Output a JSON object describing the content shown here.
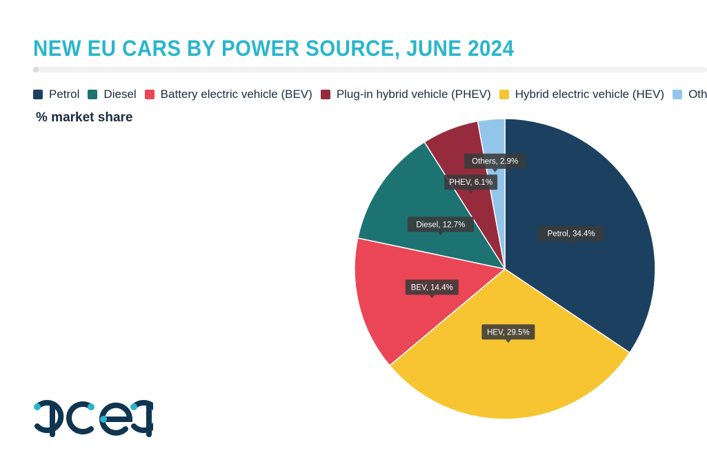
{
  "chart_data": {
    "type": "pie",
    "title": "NEW EU CARS BY POWER SOURCE, JUNE 2024",
    "subtitle": "% market share",
    "unit": "%",
    "legend_position": "top",
    "slices": [
      {
        "name": "Petrol",
        "legend_label": "Petrol",
        "label": "Petrol, 34.4%",
        "value": 34.4,
        "color": "#1c4160"
      },
      {
        "name": "HEV",
        "legend_label": "Hybrid electric vehicle (HEV)",
        "label": "HEV, 29.5%",
        "value": 29.5,
        "color": "#f6c531"
      },
      {
        "name": "BEV",
        "legend_label": "Battery electric vehicle (BEV)",
        "label": "BEV, 14.4%",
        "value": 14.4,
        "color": "#ea4656"
      },
      {
        "name": "Diesel",
        "legend_label": "Diesel",
        "label": "Diesel, 12.7%",
        "value": 12.7,
        "color": "#1d7372"
      },
      {
        "name": "PHEV",
        "legend_label": "Plug-in hybrid vehicle (PHEV)",
        "label": "PHEV, 6.1%",
        "value": 6.1,
        "color": "#962b3e"
      },
      {
        "name": "Others",
        "legend_label": "Others",
        "label": "Others, 2.9%",
        "value": 2.9,
        "color": "#93c5ea"
      }
    ],
    "legend_order": [
      "Petrol",
      "Diesel",
      "BEV",
      "PHEV",
      "HEV",
      "Others"
    ]
  },
  "logo": {
    "text": "acea",
    "color": "#0f3550",
    "accent": "#29b6cc"
  },
  "accent_color": "#29b6cc"
}
